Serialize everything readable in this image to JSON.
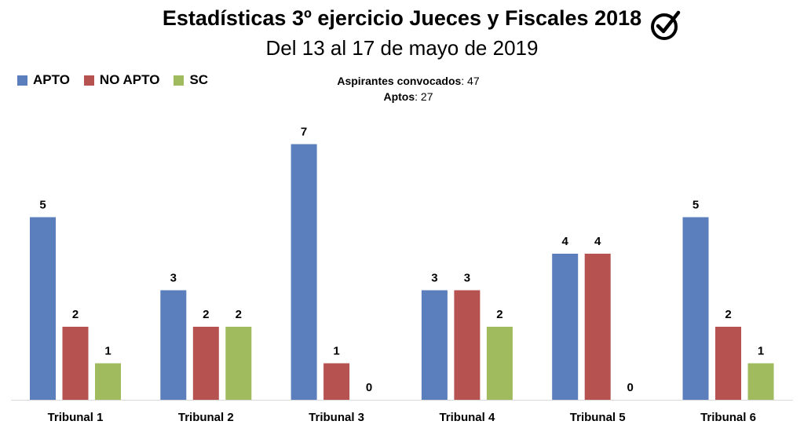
{
  "chart_data": {
    "type": "bar",
    "title": "Estadísticas 3º ejercicio Jueces y Fiscales 2018",
    "subtitle": "Del 13 al 17 de mayo de 2019",
    "categories": [
      "Tribunal 1",
      "Tribunal 2",
      "Tribunal 3",
      "Tribunal 4",
      "Tribunal 5",
      "Tribunal 6"
    ],
    "series": [
      {
        "name": "APTO",
        "color": "#5b7fbc",
        "values": [
          5,
          3,
          7,
          3,
          4,
          5
        ]
      },
      {
        "name": "NO APTO",
        "color": "#b6524f",
        "values": [
          2,
          2,
          1,
          3,
          4,
          2
        ]
      },
      {
        "name": "SC",
        "color": "#9fbb5d",
        "values": [
          1,
          2,
          0,
          2,
          0,
          1
        ]
      }
    ],
    "ylim": [
      0,
      7
    ],
    "legend_position": "top-left",
    "grid": false
  },
  "annotations": {
    "convocados_label": "Aspirantes convocados",
    "convocados_value": ": 47",
    "aptos_label": "Aptos",
    "aptos_value": ": 27"
  },
  "logo": {
    "icon": "check-badge-icon"
  }
}
